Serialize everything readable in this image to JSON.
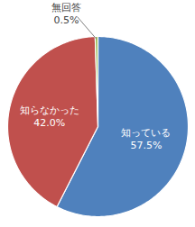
{
  "chart_data": {
    "type": "pie",
    "categories": [
      "知っている",
      "知らなかった",
      "無回答"
    ],
    "values": [
      57.5,
      42.0,
      0.5
    ],
    "value_labels": [
      "57.5%",
      "42.0%",
      "0.5%"
    ],
    "colors": [
      "#4f81bd",
      "#c0504d",
      "#9bbb59"
    ],
    "data_labels": true
  }
}
